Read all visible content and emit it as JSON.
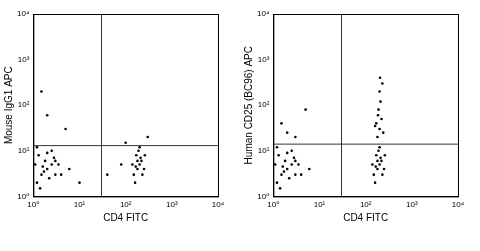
{
  "chart_data": [
    {
      "type": "scatter",
      "x_label": "CD4 FITC",
      "y_label": "Mouse IgG1 APC",
      "log": true,
      "grid": false,
      "color": "#000000",
      "marker": "dot",
      "xlim": [
        1,
        10000
      ],
      "ylim": [
        1,
        10000
      ],
      "xticks": [
        {
          "value": 1,
          "label": "10⁰"
        },
        {
          "value": 10,
          "label": "10¹"
        },
        {
          "value": 100,
          "label": "10²"
        },
        {
          "value": 1000,
          "label": "10³"
        },
        {
          "value": 10000,
          "label": "10⁴"
        }
      ],
      "yticks": [
        {
          "value": 1,
          "label": "10⁰"
        },
        {
          "value": 10,
          "label": "10¹"
        },
        {
          "value": 100,
          "label": "10²"
        },
        {
          "value": 1000,
          "label": "10³"
        },
        {
          "value": 10000,
          "label": "10⁴"
        }
      ],
      "quadrant_x": 30,
      "quadrant_y": 13,
      "x": [
        1.2,
        1.5,
        2,
        2.5,
        1.8,
        1.3,
        3,
        2.2,
        1.6,
        2.8,
        1.1,
        3.5,
        2,
        1.4,
        4,
        2.5,
        1.7,
        3,
        6,
        1.2,
        150,
        180,
        200,
        220,
        170,
        160,
        250,
        190,
        210,
        140,
        230,
        200,
        180,
        260,
        165,
        40,
        80,
        10,
        5,
        2,
        300,
        1.5,
        100
      ],
      "values": [
        2,
        3,
        4,
        5,
        6,
        8,
        3,
        2.5,
        4.5,
        7,
        5,
        5,
        9,
        1.5,
        3,
        10,
        3.5,
        6,
        4,
        12,
        3,
        4,
        5,
        6,
        8,
        2,
        4,
        10,
        7,
        5,
        3,
        12,
        6,
        8,
        4.5,
        3,
        5,
        2,
        30,
        60,
        20,
        200,
        15
      ]
    },
    {
      "type": "scatter",
      "x_label": "CD4 FITC",
      "y_label": "Human CD25 (BC96) APC",
      "log": true,
      "grid": false,
      "color": "#000000",
      "marker": "dot",
      "xlim": [
        1,
        10000
      ],
      "ylim": [
        1,
        10000
      ],
      "xticks": [
        {
          "value": 1,
          "label": "10⁰"
        },
        {
          "value": 10,
          "label": "10¹"
        },
        {
          "value": 100,
          "label": "10²"
        },
        {
          "value": 1000,
          "label": "10³"
        },
        {
          "value": 10000,
          "label": "10⁴"
        }
      ],
      "yticks": [
        {
          "value": 1,
          "label": "10⁰"
        },
        {
          "value": 10,
          "label": "10¹"
        },
        {
          "value": 100,
          "label": "10²"
        },
        {
          "value": 1000,
          "label": "10³"
        },
        {
          "value": 10000,
          "label": "10⁴"
        }
      ],
      "quadrant_x": 30,
      "quadrant_y": 14,
      "x": [
        1.2,
        1.5,
        2,
        2.5,
        1.8,
        1.3,
        3,
        2.2,
        1.6,
        2.8,
        1.1,
        3.5,
        2,
        1.4,
        4,
        2.5,
        1.7,
        3,
        6,
        1.2,
        2,
        1.5,
        3,
        5,
        150,
        180,
        200,
        220,
        170,
        160,
        250,
        190,
        210,
        140,
        230,
        200,
        180,
        260,
        165,
        180,
        200,
        220,
        190,
        170,
        210,
        200,
        230,
        185,
        240,
        160,
        205
      ],
      "values": [
        2,
        3,
        4,
        5,
        6,
        8,
        3,
        2.5,
        4.5,
        7,
        5,
        5,
        9,
        1.5,
        3,
        10,
        3.5,
        6,
        4,
        12,
        25,
        40,
        20,
        80,
        3,
        4,
        5,
        6,
        8,
        2,
        4,
        10,
        7,
        5,
        3,
        12,
        6,
        8,
        4.5,
        20,
        30,
        50,
        80,
        40,
        120,
        200,
        300,
        60,
        25,
        35,
        400
      ]
    }
  ]
}
